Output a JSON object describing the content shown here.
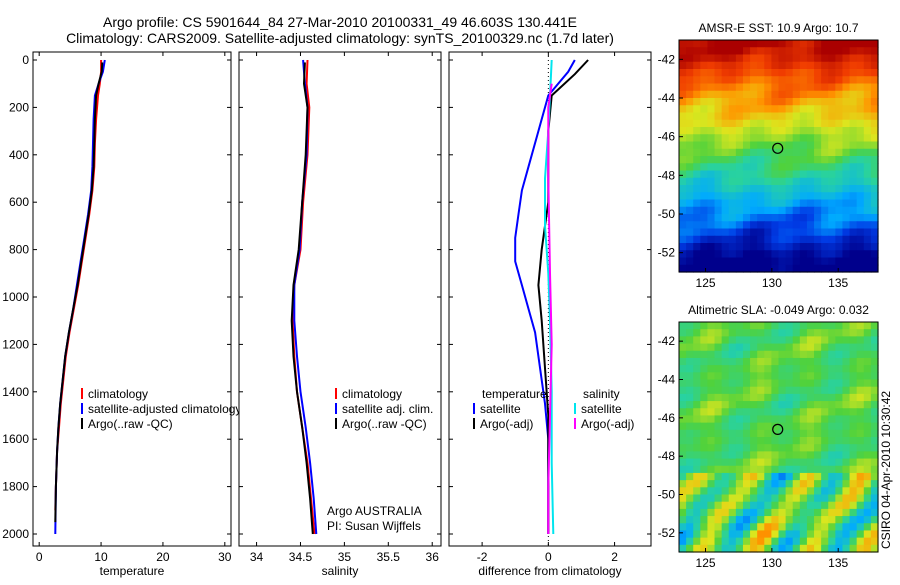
{
  "title_line1": "Argo profile: CS 5901644_84 27-Mar-2010 20100331_49 46.603S 130.441E",
  "title_line2": "Climatology: CARS2009. Satellite-adjusted climatology: synTS_20100329.nc (1.7d later)",
  "side_label": "CSIRO 04-Apr-2010 10:30:42",
  "colors": {
    "climatology": "#ff0000",
    "satellite": "#0000ff",
    "argo": "#000000",
    "salinity_satellite": "#00e5ee",
    "salinity_argo": "#ff00ff",
    "zero_line": "#000000"
  },
  "chart_data": [
    {
      "type": "line",
      "panel": "temperature",
      "xlabel": "temperature",
      "xlim": [
        -1,
        31
      ],
      "ylim": [
        2050,
        0
      ],
      "xticks": [
        0,
        10,
        20,
        30
      ],
      "yticks": [
        0,
        200,
        400,
        600,
        800,
        1000,
        1200,
        1400,
        1600,
        1800,
        2000
      ],
      "legend": [
        "climatology",
        "satellite-adjusted climatology",
        "Argo(..raw -QC)"
      ],
      "series": [
        {
          "name": "climatology",
          "color_key": "climatology",
          "points": [
            [
              10.0,
              0
            ],
            [
              10.0,
              50
            ],
            [
              9.8,
              100
            ],
            [
              9.5,
              150
            ],
            [
              9.2,
              250
            ],
            [
              9.0,
              350
            ],
            [
              8.9,
              450
            ],
            [
              8.6,
              550
            ],
            [
              8.1,
              650
            ],
            [
              7.5,
              750
            ],
            [
              6.9,
              850
            ],
            [
              6.3,
              950
            ],
            [
              5.6,
              1050
            ],
            [
              4.9,
              1150
            ],
            [
              4.3,
              1250
            ],
            [
              3.9,
              1350
            ],
            [
              3.5,
              1450
            ],
            [
              3.2,
              1550
            ],
            [
              2.9,
              1650
            ],
            [
              2.7,
              1800
            ],
            [
              2.6,
              1900
            ]
          ]
        },
        {
          "name": "satellite-adjusted climatology",
          "color_key": "satellite",
          "points": [
            [
              10.6,
              0
            ],
            [
              10.3,
              50
            ],
            [
              9.6,
              100
            ],
            [
              9.0,
              150
            ],
            [
              8.8,
              250
            ],
            [
              8.7,
              350
            ],
            [
              8.6,
              450
            ],
            [
              8.4,
              550
            ],
            [
              7.9,
              650
            ],
            [
              7.3,
              750
            ],
            [
              6.7,
              850
            ],
            [
              6.1,
              950
            ],
            [
              5.5,
              1050
            ],
            [
              4.8,
              1150
            ],
            [
              4.2,
              1250
            ],
            [
              3.8,
              1350
            ],
            [
              3.4,
              1450
            ],
            [
              3.1,
              1550
            ],
            [
              2.9,
              1650
            ],
            [
              2.7,
              1800
            ],
            [
              2.6,
              2000
            ]
          ]
        },
        {
          "name": "Argo(..raw -QC)",
          "color_key": "argo",
          "points": [
            [
              10.2,
              10
            ],
            [
              10.1,
              50
            ],
            [
              9.6,
              100
            ],
            [
              9.2,
              150
            ],
            [
              9.0,
              250
            ],
            [
              8.9,
              350
            ],
            [
              8.8,
              450
            ],
            [
              8.5,
              550
            ],
            [
              8.0,
              650
            ],
            [
              7.4,
              750
            ],
            [
              6.8,
              850
            ],
            [
              6.2,
              950
            ],
            [
              5.5,
              1050
            ],
            [
              4.8,
              1150
            ],
            [
              4.2,
              1250
            ],
            [
              3.8,
              1350
            ],
            [
              3.4,
              1450
            ],
            [
              3.1,
              1550
            ],
            [
              2.9,
              1650
            ],
            [
              2.7,
              1800
            ],
            [
              2.6,
              1950
            ]
          ]
        }
      ]
    },
    {
      "type": "line",
      "panel": "salinity",
      "xlabel": "salinity",
      "xlim": [
        33.8,
        36.1
      ],
      "ylim": [
        2050,
        0
      ],
      "xticks": [
        34,
        34.5,
        35,
        35.5,
        36
      ],
      "legend": [
        "climatology",
        "satellite adj. clim.",
        "Argo(..raw -QC)"
      ],
      "annotation": [
        "Argo AUSTRALIA",
        "PI: Susan Wijffels"
      ],
      "series": [
        {
          "name": "climatology",
          "color_key": "climatology",
          "points": [
            [
              34.58,
              0
            ],
            [
              34.57,
              100
            ],
            [
              34.6,
              200
            ],
            [
              34.58,
              400
            ],
            [
              34.53,
              600
            ],
            [
              34.5,
              800
            ],
            [
              34.43,
              950
            ],
            [
              34.41,
              1100
            ],
            [
              34.43,
              1250
            ],
            [
              34.46,
              1400
            ],
            [
              34.52,
              1550
            ],
            [
              34.58,
              1700
            ],
            [
              34.62,
              1850
            ],
            [
              34.66,
              2000
            ]
          ]
        },
        {
          "name": "satellite adj. clim.",
          "color_key": "satellite",
          "points": [
            [
              34.53,
              0
            ],
            [
              34.55,
              100
            ],
            [
              34.58,
              200
            ],
            [
              34.57,
              400
            ],
            [
              34.52,
              600
            ],
            [
              34.49,
              800
            ],
            [
              34.43,
              950
            ],
            [
              34.43,
              1100
            ],
            [
              34.46,
              1250
            ],
            [
              34.5,
              1400
            ],
            [
              34.56,
              1550
            ],
            [
              34.61,
              1700
            ],
            [
              34.65,
              1850
            ],
            [
              34.68,
              2000
            ]
          ]
        },
        {
          "name": "Argo(..raw -QC)",
          "color_key": "argo",
          "points": [
            [
              34.55,
              10
            ],
            [
              34.54,
              100
            ],
            [
              34.58,
              200
            ],
            [
              34.56,
              400
            ],
            [
              34.52,
              600
            ],
            [
              34.48,
              800
            ],
            [
              34.42,
              950
            ],
            [
              34.4,
              1100
            ],
            [
              34.42,
              1250
            ],
            [
              34.46,
              1400
            ],
            [
              34.52,
              1550
            ],
            [
              34.57,
              1700
            ],
            [
              34.61,
              1850
            ],
            [
              34.64,
              2000
            ]
          ]
        }
      ]
    },
    {
      "type": "line",
      "panel": "difference",
      "xlabel": "difference from climatology",
      "xlim": [
        -3,
        3.1
      ],
      "ylim": [
        2050,
        0
      ],
      "xticks": [
        -2,
        0,
        2
      ],
      "legend_left": [
        "temperature",
        "satellite",
        "Argo(-adj)"
      ],
      "legend_right": [
        "salinity",
        "satellite",
        "Argo(-adj)"
      ],
      "series": [
        {
          "name": "temperature satellite",
          "color_key": "satellite",
          "points": [
            [
              0.8,
              0
            ],
            [
              0.6,
              50
            ],
            [
              0.0,
              150
            ],
            [
              -0.3,
              300
            ],
            [
              -0.6,
              450
            ],
            [
              -0.8,
              550
            ],
            [
              -0.9,
              650
            ],
            [
              -1.0,
              750
            ],
            [
              -1.0,
              850
            ],
            [
              -0.8,
              950
            ],
            [
              -0.6,
              1050
            ],
            [
              -0.4,
              1150
            ],
            [
              -0.3,
              1250
            ],
            [
              -0.2,
              1350
            ],
            [
              -0.1,
              1450
            ],
            [
              0,
              1600
            ],
            [
              0,
              2000
            ]
          ]
        },
        {
          "name": "temperature Argo(-adj)",
          "color_key": "argo",
          "points": [
            [
              1.2,
              0
            ],
            [
              0.8,
              60
            ],
            [
              0.1,
              150
            ],
            [
              0.0,
              300
            ],
            [
              0.0,
              600
            ],
            [
              -0.2,
              800
            ],
            [
              -0.3,
              950
            ],
            [
              -0.2,
              1100
            ],
            [
              -0.1,
              1300
            ],
            [
              0,
              1500
            ],
            [
              0,
              2000
            ]
          ]
        },
        {
          "name": "salinity satellite",
          "color_key": "salinity_satellite",
          "points": [
            [
              0.1,
              0
            ],
            [
              0.05,
              150
            ],
            [
              0.0,
              300
            ],
            [
              -0.1,
              500
            ],
            [
              -0.1,
              700
            ],
            [
              0.0,
              900
            ],
            [
              0.05,
              1100
            ],
            [
              0.1,
              1400
            ],
            [
              0.1,
              1700
            ],
            [
              0.15,
              2000
            ]
          ]
        },
        {
          "name": "salinity Argo(-adj)",
          "color_key": "salinity_argo",
          "points": [
            [
              0.1,
              100
            ],
            [
              0.0,
              200
            ],
            [
              0.0,
              500
            ],
            [
              0.05,
              900
            ],
            [
              0.1,
              1200
            ],
            [
              0.05,
              1500
            ],
            [
              0.0,
              1800
            ],
            [
              0.0,
              2000
            ]
          ]
        }
      ]
    },
    {
      "type": "heatmap",
      "panel": "sst_map",
      "title": "AMSR-E SST: 10.9  Argo: 10.7",
      "xlim": [
        123,
        138
      ],
      "ylim": [
        -53,
        -41
      ],
      "xticks": [
        125,
        130,
        135
      ],
      "yticks": [
        -42,
        -44,
        -46,
        -48,
        -50,
        -52
      ],
      "marker": [
        130.441,
        -46.603
      ]
    },
    {
      "type": "heatmap",
      "panel": "sla_map",
      "title": "Altimetric SLA: -0.049  Argo: 0.032",
      "xlim": [
        123,
        138
      ],
      "ylim": [
        -53,
        -41
      ],
      "xticks": [
        125,
        130,
        135
      ],
      "yticks": [
        -42,
        -44,
        -46,
        -48,
        -50,
        -52
      ],
      "marker": [
        130.441,
        -46.603
      ]
    }
  ]
}
